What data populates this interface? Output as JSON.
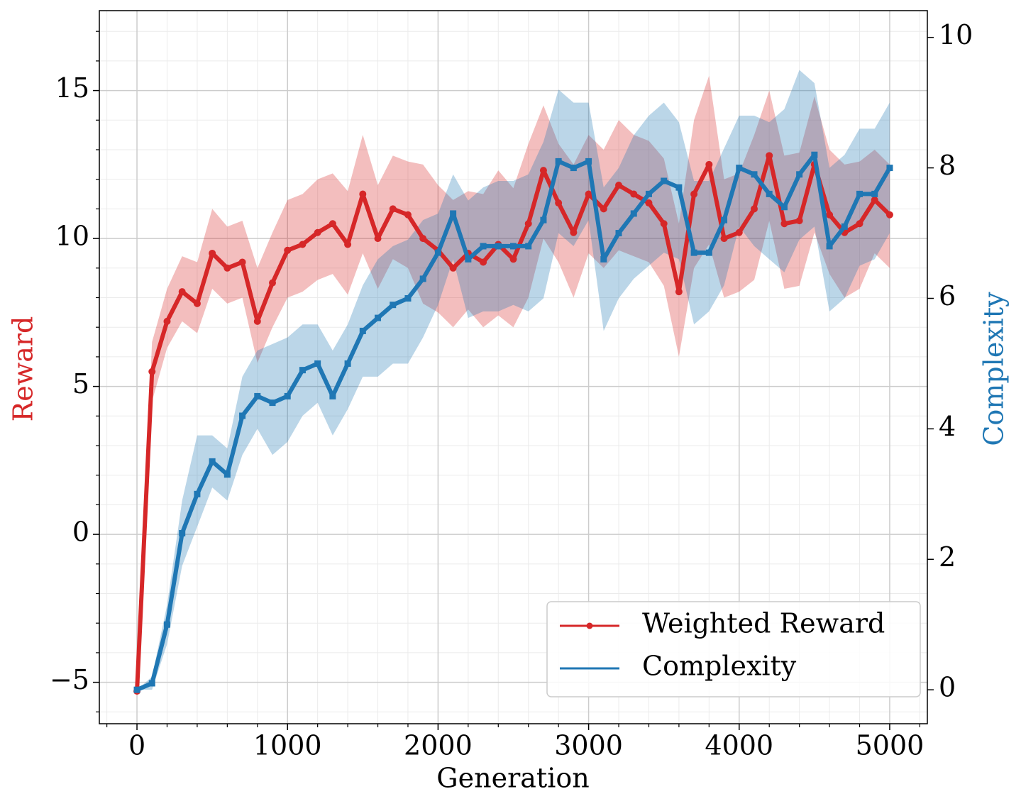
{
  "chart_data": {
    "type": "line",
    "x_label": "Generation",
    "y_label": "Reward",
    "y2_label": "Complexity",
    "x": [
      0,
      100,
      200,
      300,
      400,
      500,
      600,
      700,
      800,
      900,
      1000,
      1100,
      1200,
      1300,
      1400,
      1500,
      1600,
      1700,
      1800,
      1900,
      2000,
      2100,
      2200,
      2300,
      2400,
      2500,
      2600,
      2700,
      2800,
      2900,
      3000,
      3100,
      3200,
      3300,
      3400,
      3500,
      3600,
      3700,
      3800,
      3900,
      4000,
      4100,
      4200,
      4300,
      4400,
      4500,
      4600,
      4700,
      4800,
      4900,
      5000
    ],
    "series": [
      {
        "name": "Weighted Reward",
        "color": "#d62728",
        "axis": "y",
        "marker": "circle",
        "values": [
          -5.3,
          5.5,
          7.2,
          8.2,
          7.8,
          9.5,
          9.0,
          9.2,
          7.2,
          8.5,
          9.6,
          9.8,
          10.2,
          10.5,
          9.8,
          11.5,
          10.0,
          11.0,
          10.8,
          10.0,
          9.6,
          9.0,
          9.5,
          9.2,
          9.8,
          9.3,
          10.5,
          12.3,
          11.2,
          10.2,
          11.5,
          11.0,
          11.8,
          11.5,
          11.2,
          10.5,
          8.2,
          11.5,
          12.5,
          10.0,
          10.2,
          11.0,
          12.8,
          10.5,
          10.6,
          12.5,
          10.8,
          10.2,
          10.5,
          11.3,
          10.8
        ],
        "upper": [
          -5.1,
          6.5,
          8.3,
          9.4,
          9.2,
          11.0,
          10.4,
          10.6,
          9.0,
          10.2,
          11.3,
          11.5,
          12.0,
          12.2,
          11.6,
          13.5,
          11.8,
          12.8,
          12.6,
          12.5,
          11.8,
          11.3,
          11.6,
          11.5,
          12.3,
          11.7,
          13.2,
          14.5,
          13.2,
          12.5,
          13.5,
          13.0,
          14.0,
          13.5,
          13.3,
          12.7,
          10.5,
          14.0,
          15.5,
          12.0,
          12.2,
          13.5,
          15.0,
          12.8,
          12.9,
          14.8,
          13.0,
          12.5,
          12.6,
          13.0,
          12.5
        ],
        "lower": [
          -5.5,
          4.5,
          6.3,
          7.2,
          6.8,
          8.3,
          7.8,
          8.0,
          5.8,
          7.0,
          8.0,
          8.2,
          8.6,
          8.8,
          8.1,
          9.5,
          8.3,
          9.3,
          9.0,
          7.8,
          7.5,
          7.0,
          7.6,
          7.0,
          7.4,
          7.0,
          8.0,
          10.0,
          9.2,
          8.0,
          9.5,
          9.0,
          9.6,
          9.4,
          9.2,
          8.4,
          6.0,
          9.0,
          9.8,
          8.0,
          8.2,
          8.6,
          10.6,
          8.3,
          8.4,
          10.2,
          8.8,
          8.0,
          8.3,
          9.5,
          9.0
        ]
      },
      {
        "name": "Complexity",
        "color": "#1f77b4",
        "axis": "y2",
        "marker": "square",
        "values": [
          0,
          0.1,
          1.0,
          2.4,
          3.0,
          3.5,
          3.3,
          4.2,
          4.5,
          4.4,
          4.5,
          4.9,
          5.0,
          4.5,
          5.0,
          5.5,
          5.7,
          5.9,
          6.0,
          6.3,
          6.7,
          7.3,
          6.6,
          6.8,
          6.8,
          6.8,
          6.8,
          7.2,
          8.1,
          8.0,
          8.1,
          6.6,
          7.0,
          7.3,
          7.6,
          7.8,
          7.7,
          6.7,
          6.7,
          7.2,
          8.0,
          7.9,
          7.6,
          7.4,
          7.9,
          8.2,
          6.8,
          7.1,
          7.6,
          7.6,
          8.0
        ],
        "upper": [
          0,
          0.2,
          1.3,
          2.9,
          3.9,
          3.9,
          3.7,
          4.8,
          5.2,
          5.3,
          5.4,
          5.6,
          5.6,
          5.2,
          5.6,
          6.2,
          6.6,
          6.8,
          6.9,
          7.2,
          7.3,
          7.9,
          7.5,
          7.7,
          7.8,
          7.8,
          7.9,
          8.4,
          9.2,
          9.0,
          9.0,
          7.7,
          8.0,
          8.5,
          8.8,
          9.0,
          8.7,
          7.8,
          7.8,
          8.3,
          8.8,
          8.8,
          8.7,
          8.9,
          9.5,
          9.3,
          8.0,
          8.2,
          8.6,
          8.6,
          9.0
        ],
        "lower": [
          0,
          0.0,
          0.7,
          1.9,
          2.5,
          3.1,
          2.9,
          3.6,
          4.0,
          3.6,
          3.8,
          4.2,
          4.4,
          3.9,
          4.3,
          4.8,
          4.8,
          5.0,
          5.0,
          5.4,
          5.9,
          6.6,
          5.7,
          5.8,
          5.8,
          5.9,
          5.8,
          6.0,
          7.0,
          6.8,
          7.2,
          5.5,
          6.0,
          6.3,
          6.5,
          6.7,
          6.6,
          5.6,
          5.8,
          6.2,
          7.1,
          6.8,
          6.6,
          6.4,
          6.9,
          7.1,
          5.8,
          6.0,
          6.5,
          6.6,
          7.0
        ]
      }
    ],
    "xlim": [
      -250,
      5250
    ],
    "ylim": [
      -6.4,
      17.7
    ],
    "y2lim": [
      -0.52,
      10.41
    ],
    "xticks": [
      0,
      1000,
      2000,
      3000,
      4000,
      5000
    ],
    "yticks": [
      {
        "value": -5,
        "label": "−5"
      },
      0,
      5,
      10,
      15
    ],
    "y2ticks": [
      0,
      2,
      4,
      6,
      8,
      10
    ],
    "xminorticks": [
      -200,
      200,
      400,
      600,
      800,
      1200,
      1400,
      1600,
      1800,
      2200,
      2400,
      2600,
      2800,
      3200,
      3400,
      3600,
      3800,
      4200,
      4400,
      4600,
      4800,
      5200
    ],
    "yminorticks": [
      -6,
      -4,
      -3,
      -2,
      -1,
      1,
      2,
      3,
      4,
      6,
      7,
      8,
      9,
      11,
      12,
      13,
      14,
      16,
      17
    ],
    "grid": true,
    "legend": "lower right"
  }
}
